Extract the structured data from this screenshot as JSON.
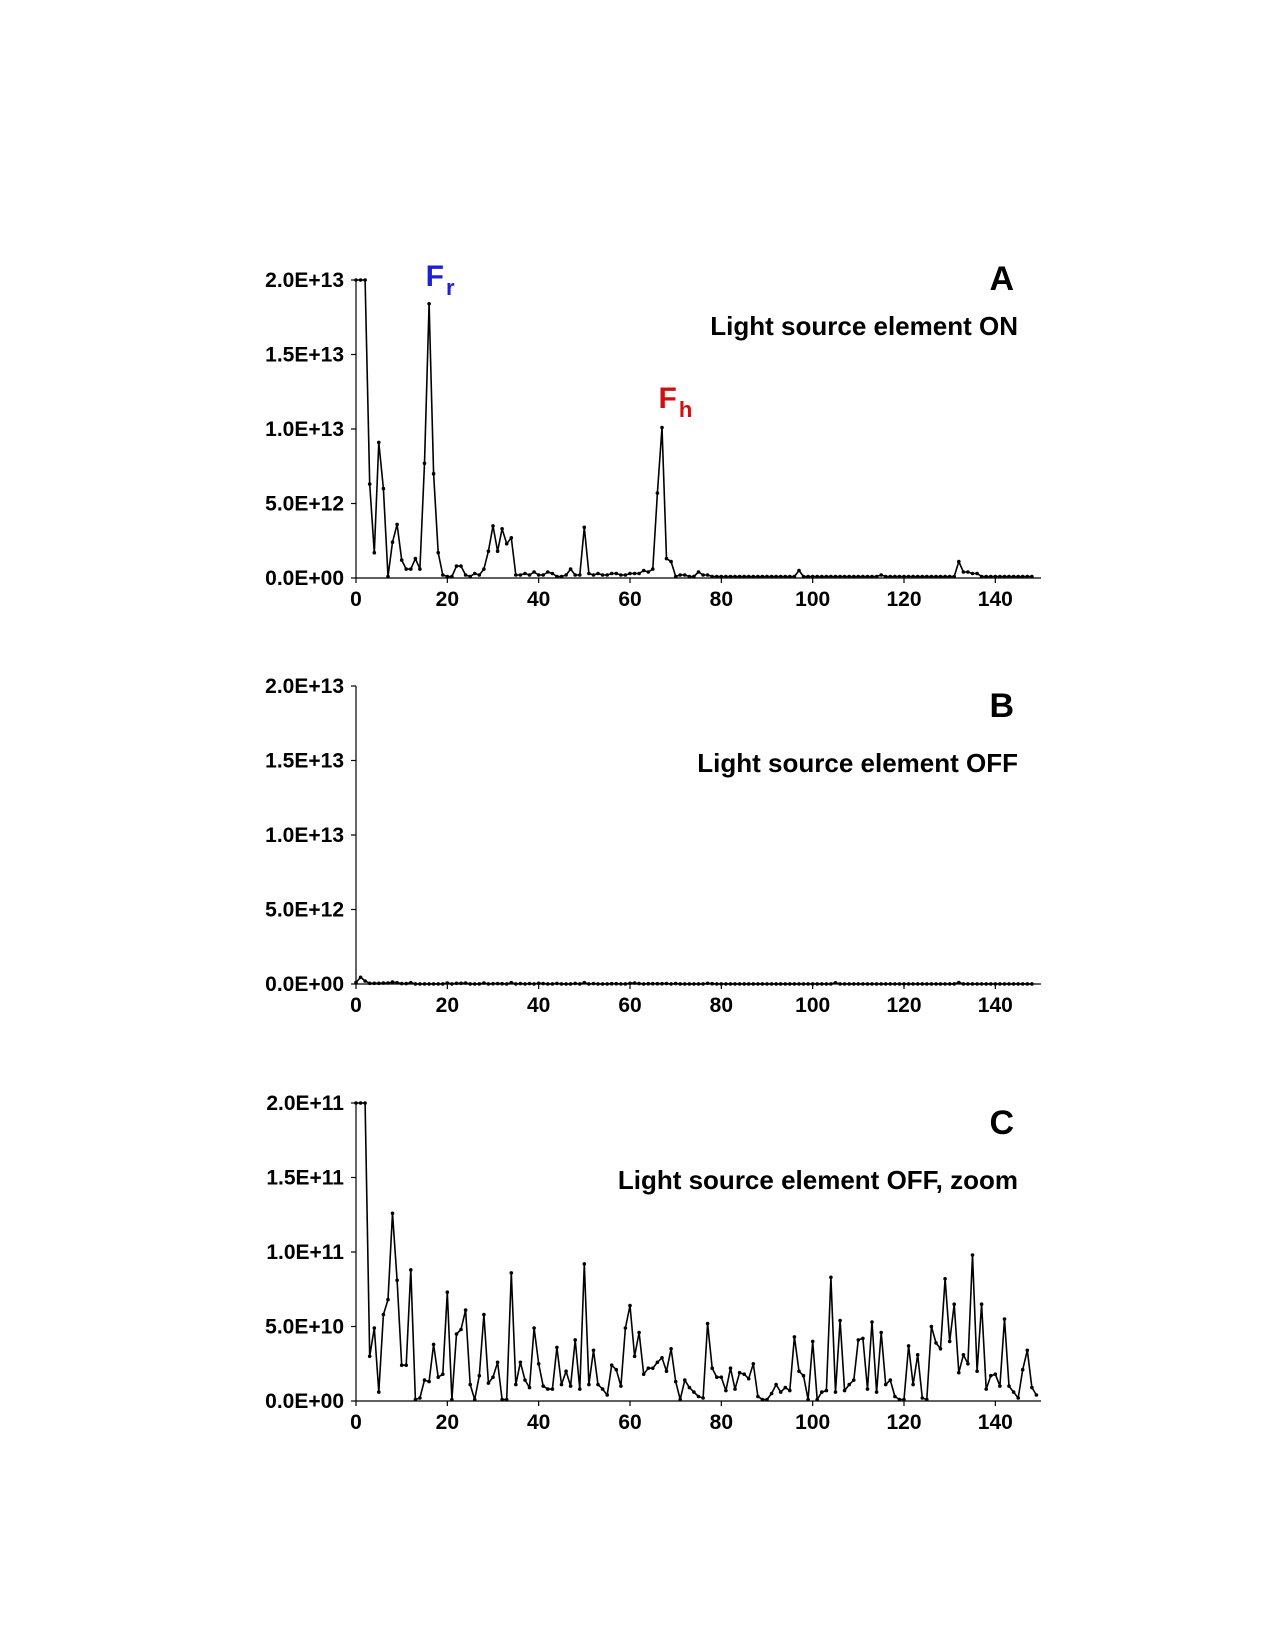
{
  "chart_data": [
    {
      "type": "line",
      "panel_label": "A",
      "title": "Light source element ON",
      "xlim": [
        0,
        150
      ],
      "ylim": [
        0,
        20000000000000
      ],
      "x_ticks": [
        0,
        20,
        40,
        60,
        80,
        100,
        120,
        140
      ],
      "x_tick_labels": [
        "0",
        "20",
        "40",
        "60",
        "80",
        "100",
        "120",
        "140"
      ],
      "y_ticks": [
        0,
        5000000000000,
        10000000000000,
        15000000000000,
        20000000000000
      ],
      "y_tick_labels": [
        "0.0E+00",
        "5.0E+12",
        "1.0E+13",
        "1.5E+13",
        "2.0E+13"
      ],
      "annotations": [
        {
          "main": "F",
          "sub": "r",
          "color": "#1f1fd6",
          "x": 17
        },
        {
          "main": "F",
          "sub": "h",
          "color": "#d01010",
          "x": 68
        }
      ],
      "series": [
        {
          "values": [
            20000000000000,
            20000000000000,
            20000000000000,
            6300000000000,
            1700000000000,
            9100000000000,
            6000000000000,
            100000000000,
            2400000000000,
            3600000000000,
            1200000000000,
            600000000000,
            600000000000,
            1300000000000,
            600000000000,
            7700000000000,
            18400000000000,
            7000000000000,
            1700000000000,
            200000000000,
            100000000000,
            100000000000,
            800000000000,
            800000000000,
            200000000000,
            100000000000,
            300000000000,
            200000000000,
            600000000000,
            1800000000000,
            3500000000000,
            1800000000000,
            3300000000000,
            2300000000000,
            2700000000000,
            200000000000,
            200000000000,
            300000000000,
            200000000000,
            400000000000,
            200000000000,
            200000000000,
            400000000000,
            300000000000,
            100000000000,
            100000000000,
            200000000000,
            600000000000,
            200000000000,
            200000000000,
            3400000000000,
            300000000000,
            200000000000,
            300000000000,
            200000000000,
            200000000000,
            300000000000,
            300000000000,
            200000000000,
            200000000000,
            300000000000,
            300000000000,
            300000000000,
            500000000000,
            400000000000,
            600000000000,
            5700000000000,
            10100000000000,
            1300000000000,
            1100000000000,
            100000000000,
            200000000000,
            200000000000,
            100000000000,
            100000000000,
            400000000000,
            200000000000,
            200000000000,
            100000000000,
            100000000000,
            100000000000,
            100000000000,
            100000000000,
            100000000000,
            100000000000,
            100000000000,
            100000000000,
            100000000000,
            100000000000,
            100000000000,
            100000000000,
            100000000000,
            100000000000,
            100000000000,
            100000000000,
            100000000000,
            100000000000,
            500000000000,
            100000000000,
            100000000000,
            100000000000,
            100000000000,
            100000000000,
            100000000000,
            100000000000,
            100000000000,
            100000000000,
            100000000000,
            100000000000,
            100000000000,
            100000000000,
            100000000000,
            100000000000,
            100000000000,
            100000000000,
            200000000000,
            100000000000,
            100000000000,
            100000000000,
            100000000000,
            100000000000,
            100000000000,
            100000000000,
            100000000000,
            100000000000,
            100000000000,
            100000000000,
            100000000000,
            100000000000,
            100000000000,
            100000000000,
            100000000000,
            1100000000000,
            400000000000,
            400000000000,
            300000000000,
            300000000000,
            100000000000,
            100000000000,
            100000000000,
            100000000000,
            100000000000,
            100000000000,
            100000000000,
            100000000000,
            100000000000,
            100000000000,
            100000000000,
            100000000000
          ]
        }
      ]
    },
    {
      "type": "line",
      "panel_label": "B",
      "title": "Light source element OFF",
      "xlim": [
        0,
        150
      ],
      "ylim": [
        0,
        20000000000000
      ],
      "x_ticks": [
        0,
        20,
        40,
        60,
        80,
        100,
        120,
        140
      ],
      "x_tick_labels": [
        "0",
        "20",
        "40",
        "60",
        "80",
        "100",
        "120",
        "140"
      ],
      "y_ticks": [
        0,
        5000000000000,
        10000000000000,
        15000000000000,
        20000000000000
      ],
      "y_tick_labels": [
        "0.0E+00",
        "5.0E+12",
        "1.0E+13",
        "1.5E+13",
        "2.0E+13"
      ],
      "annotations": [],
      "series": [
        {
          "values": [
            100000000000,
            450000000000,
            200000000000,
            50000000000,
            50000000000,
            50000000000,
            60000000000,
            70000000000,
            130000000000,
            80000000000,
            30000000000,
            30000000000,
            90000000000,
            10000000000,
            10000000000,
            10000000000,
            10000000000,
            10000000000,
            10000000000,
            10000000000,
            70000000000,
            10000000000,
            50000000000,
            50000000000,
            60000000000,
            10000000000,
            10000000000,
            10000000000,
            60000000000,
            10000000000,
            20000000000,
            30000000000,
            20000000000,
            10000000000,
            90000000000,
            10000000000,
            30000000000,
            10000000000,
            30000000000,
            10000000000,
            50000000000,
            30000000000,
            10000000000,
            10000000000,
            40000000000,
            10000000000,
            10000000000,
            10000000000,
            40000000000,
            10000000000,
            90000000000,
            10000000000,
            30000000000,
            10000000000,
            10000000000,
            10000000000,
            20000000000,
            20000000000,
            10000000000,
            10000000000,
            50000000000,
            60000000000,
            30000000000,
            10000000000,
            20000000000,
            20000000000,
            20000000000,
            20000000000,
            30000000000,
            10000000000,
            30000000000,
            10000000000,
            10000000000,
            10000000000,
            10000000000,
            10000000000,
            10000000000,
            50000000000,
            20000000000,
            10000000000,
            10000000000,
            10000000000,
            10000000000,
            10000000000,
            10000000000,
            10000000000,
            10000000000,
            10000000000,
            10000000000,
            10000000000,
            10000000000,
            10000000000,
            10000000000,
            10000000000,
            10000000000,
            10000000000,
            10000000000,
            10000000000,
            10000000000,
            10000000000,
            10000000000,
            10000000000,
            10000000000,
            10000000000,
            10000000000,
            80000000000,
            10000000000,
            10000000000,
            10000000000,
            10000000000,
            10000000000,
            10000000000,
            10000000000,
            10000000000,
            10000000000,
            10000000000,
            10000000000,
            10000000000,
            10000000000,
            10000000000,
            10000000000,
            10000000000,
            10000000000,
            10000000000,
            10000000000,
            10000000000,
            10000000000,
            10000000000,
            10000000000,
            10000000000,
            10000000000,
            10000000000,
            100000000000,
            10000000000,
            10000000000,
            10000000000,
            10000000000,
            10000000000,
            10000000000,
            10000000000,
            10000000000,
            10000000000,
            10000000000,
            10000000000,
            10000000000,
            10000000000,
            10000000000,
            10000000000,
            10000000000
          ]
        }
      ]
    },
    {
      "type": "line",
      "panel_label": "C",
      "title": "Light source element OFF, zoom",
      "xlim": [
        0,
        150
      ],
      "ylim": [
        0,
        200000000000
      ],
      "x_ticks": [
        0,
        20,
        40,
        60,
        80,
        100,
        120,
        140
      ],
      "x_tick_labels": [
        "0",
        "20",
        "40",
        "60",
        "80",
        "100",
        "120",
        "140"
      ],
      "y_ticks": [
        0,
        50000000000,
        100000000000,
        150000000000,
        200000000000
      ],
      "y_tick_labels": [
        "0.0E+00",
        "5.0E+10",
        "1.0E+11",
        "1.5E+11",
        "2.0E+11"
      ],
      "annotations": [],
      "series": [
        {
          "values": [
            200000000000,
            200000000000,
            200000000000,
            30000000000,
            49000000000,
            6000000000,
            58000000000,
            68000000000,
            126000000000,
            81000000000,
            24000000000,
            24000000000,
            88000000000,
            1000000000,
            2000000000,
            14000000000,
            13000000000,
            38000000000,
            16000000000,
            18000000000,
            73000000000,
            1000000000,
            45000000000,
            48000000000,
            61000000000,
            11000000000,
            1000000000,
            17000000000,
            58000000000,
            12000000000,
            16000000000,
            26000000000,
            1000000000,
            1000000000,
            86000000000,
            11000000000,
            26000000000,
            14000000000,
            9000000000,
            49000000000,
            25000000000,
            10000000000,
            8000000000,
            8000000000,
            36000000000,
            11000000000,
            20000000000,
            10000000000,
            41000000000,
            8000000000,
            92000000000,
            11000000000,
            34000000000,
            11000000000,
            8000000000,
            4000000000,
            24000000000,
            21000000000,
            10000000000,
            49000000000,
            64000000000,
            30000000000,
            46000000000,
            18000000000,
            22000000000,
            22000000000,
            26000000000,
            29000000000,
            20000000000,
            35000000000,
            13000000000,
            1000000000,
            14000000000,
            9000000000,
            6000000000,
            3000000000,
            2000000000,
            52000000000,
            22000000000,
            16000000000,
            16000000000,
            7000000000,
            22000000000,
            8000000000,
            19000000000,
            18000000000,
            15000000000,
            25000000000,
            3000000000,
            1000000000,
            1000000000,
            5000000000,
            11000000000,
            6000000000,
            9000000000,
            7000000000,
            43000000000,
            20000000000,
            17000000000,
            1000000000,
            40000000000,
            1000000000,
            6000000000,
            7000000000,
            83000000000,
            6000000000,
            54000000000,
            7000000000,
            11000000000,
            14000000000,
            41000000000,
            42000000000,
            8000000000,
            53000000000,
            6000000000,
            46000000000,
            11000000000,
            14000000000,
            3000000000,
            1000000000,
            1000000000,
            37000000000,
            11000000000,
            31000000000,
            2000000000,
            1000000000,
            50000000000,
            39000000000,
            35000000000,
            82000000000,
            40000000000,
            65000000000,
            19000000000,
            31000000000,
            25000000000,
            98000000000,
            20000000000,
            65000000000,
            8000000000,
            17000000000,
            18000000000,
            10000000000,
            55000000000,
            10000000000,
            6000000000,
            2000000000,
            21000000000,
            34000000000,
            9000000000,
            4000000000
          ]
        }
      ]
    }
  ]
}
